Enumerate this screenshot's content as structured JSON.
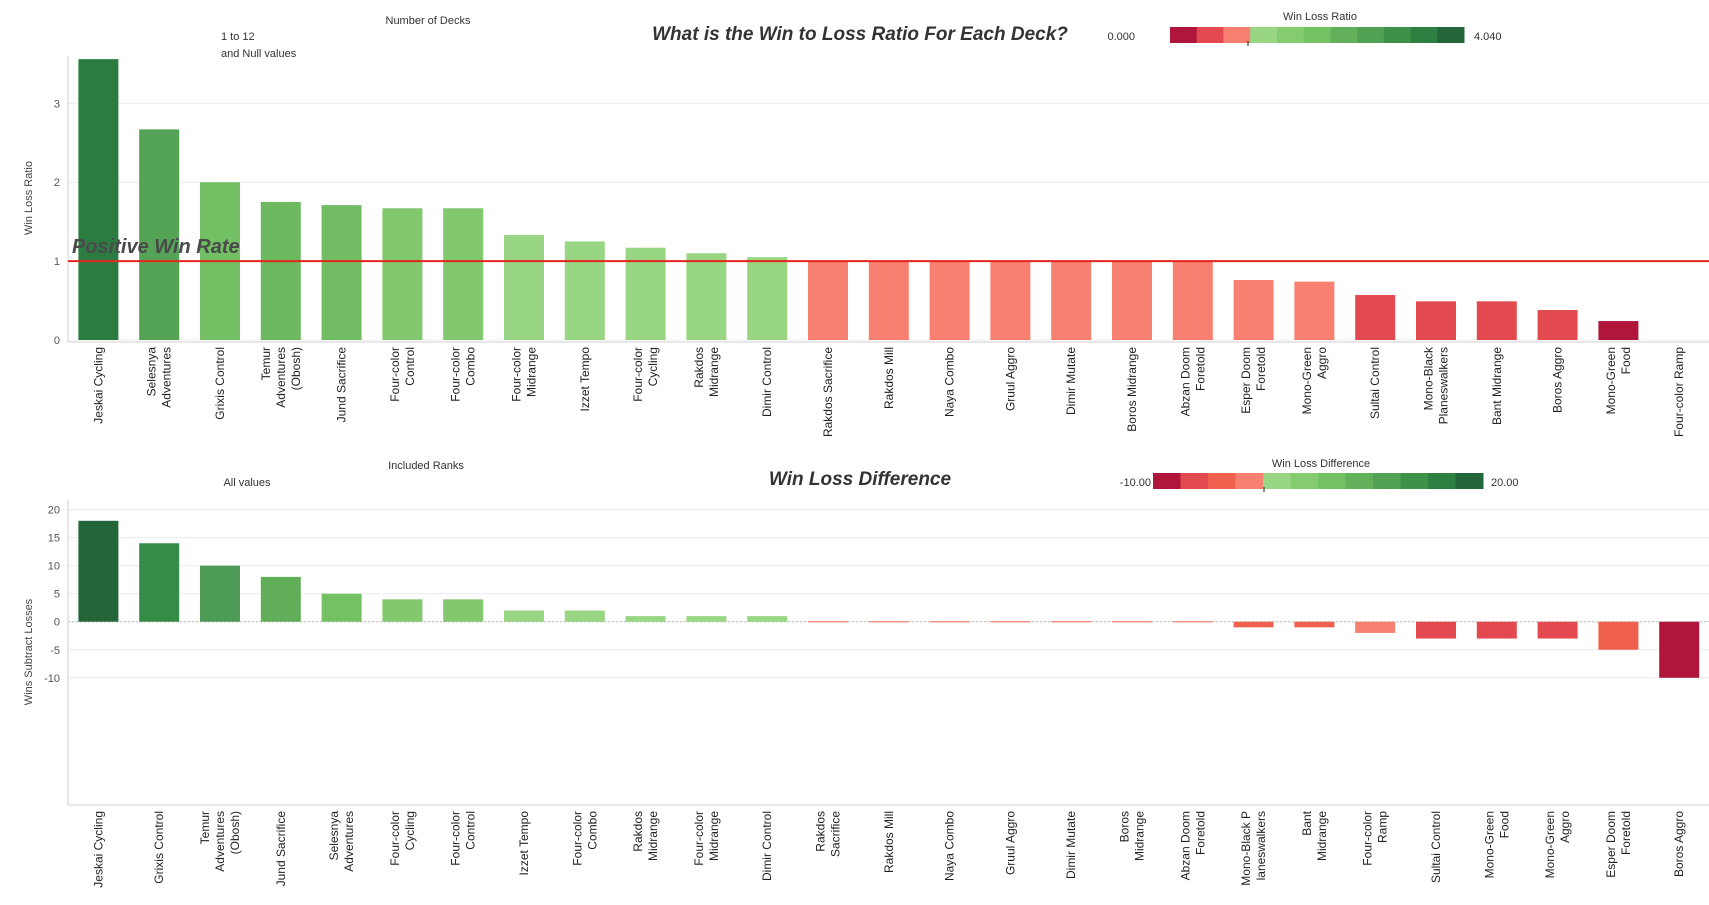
{
  "chart_data": [
    {
      "type": "bar",
      "title": "What is the Win to Loss Ratio For Each Deck?",
      "ylabel": "Win Loss Ratio",
      "ylim": [
        0,
        3.6
      ],
      "yticks": [
        "0",
        "1",
        "2",
        "3"
      ],
      "grid": true,
      "filters": [
        {
          "title": "Number of Decks",
          "value": "1 to 12\nand Null values",
          "lines": [
            "1 to 12",
            "and Null values"
          ]
        }
      ],
      "legend": {
        "title": "Win Loss Ratio",
        "min_label": "0.000",
        "max_label": "4.040",
        "placement": "top-right",
        "colors": [
          "#b0163c",
          "#e34a4f",
          "#f88070",
          "#98d683",
          "#84cc6f",
          "#74c164",
          "#62b05a",
          "#52a155",
          "#3d9148",
          "#2d8042",
          "#23663a"
        ]
      },
      "reference_line": {
        "value": 1,
        "label": "Positive Win Rate",
        "color": "#e3251c"
      },
      "categories": [
        "Jeskai Cycling",
        "Selesnya Adventures",
        "Grixis Control",
        "Temur Adventures (Obosh)",
        "Jund Sacrifice",
        "Four-color Control",
        "Four-color Combo",
        "Four-color Midrange",
        "Izzet Tempo",
        "Four-color Cycling",
        "Rakdos Midrange",
        "Dimir Control",
        "Rakdos Sacrifice",
        "Rakdos Mill",
        "Naya Combo",
        "Gruul Aggro",
        "Dimir Mutate",
        "Boros Midrange",
        "Abzan Doom Foretold",
        "Esper Doom Foretold",
        "Mono-Green Aggro",
        "Sultai Control",
        "Mono-Black Planeswalkers",
        "Bant Midrange",
        "Boros Aggro",
        "Mono-Green Food",
        "Four-color Ramp"
      ],
      "category_lines": [
        [
          "Jeskai Cycling"
        ],
        [
          "Selesnya",
          "Adventures"
        ],
        [
          "Grixis Control"
        ],
        [
          "Temur",
          "Adventures",
          "(Obosh)"
        ],
        [
          "Jund Sacrifice"
        ],
        [
          "Four-color",
          "Control"
        ],
        [
          "Four-color",
          "Combo"
        ],
        [
          "Four-color",
          "Midrange"
        ],
        [
          "Izzet Tempo"
        ],
        [
          "Four-color",
          "Cycling"
        ],
        [
          "Rakdos",
          "Midrange"
        ],
        [
          "Dimir Control"
        ],
        [
          "Rakdos Sacrifice"
        ],
        [
          "Rakdos Mill"
        ],
        [
          "Naya Combo"
        ],
        [
          "Gruul Aggro"
        ],
        [
          "Dimir Mutate"
        ],
        [
          "Boros Midrange"
        ],
        [
          "Abzan Doom",
          "Foretold"
        ],
        [
          "Esper Doom",
          "Foretold"
        ],
        [
          "Mono-Green",
          "Aggro"
        ],
        [
          "Sultai Control"
        ],
        [
          "Mono-Black",
          "Planeswalkers"
        ],
        [
          "Bant Midrange"
        ],
        [
          "Boros Aggro"
        ],
        [
          "Mono-Green",
          "Food"
        ],
        [
          "Four-color Ramp"
        ]
      ],
      "values": [
        3.56,
        2.67,
        2.0,
        1.75,
        1.71,
        1.67,
        1.67,
        1.33,
        1.25,
        1.17,
        1.1,
        1.05,
        1.0,
        1.0,
        1.0,
        1.0,
        1.0,
        1.0,
        1.0,
        0.76,
        0.74,
        0.57,
        0.49,
        0.49,
        0.38,
        0.24,
        0.0
      ],
      "colors": [
        "#2b7c41",
        "#55a356",
        "#73bf64",
        "#6cb960",
        "#72bd64",
        "#82c86f",
        "#82c86f",
        "#98d683",
        "#98d683",
        "#98d683",
        "#98d683",
        "#98d683",
        "#f88070",
        "#f88070",
        "#f88070",
        "#f88070",
        "#f88070",
        "#f88070",
        "#f88070",
        "#f88070",
        "#f88070",
        "#e34a4f",
        "#e34a4f",
        "#e34a4f",
        "#e34a4f",
        "#b0163c",
        "#f88070"
      ]
    },
    {
      "type": "bar",
      "title": "Win Loss Difference",
      "ylabel": "Wins Subtract Losses",
      "ylim": [
        -12,
        21
      ],
      "yticks": [
        "20",
        "15",
        "10",
        "5",
        "0",
        "-5",
        "-10"
      ],
      "grid": true,
      "filters": [
        {
          "title": "Included Ranks",
          "value": "All values",
          "lines": [
            "All values"
          ]
        }
      ],
      "legend": {
        "title": "Win Loss Difference",
        "min_label": "-10.00",
        "max_label": "20.00",
        "placement": "top-right",
        "colors": [
          "#b0163c",
          "#e34a4f",
          "#f0604f",
          "#f88070",
          "#98d683",
          "#84cc6f",
          "#74c164",
          "#62b05a",
          "#52a155",
          "#3d9148",
          "#2d8042",
          "#23663a"
        ]
      },
      "categories": [
        "Jeskai Cycling",
        "Grixis Control",
        "Temur Adventures (Obosh)",
        "Jund Sacrifice",
        "Selesnya Adventures",
        "Four-color Cycling",
        "Four-color Control",
        "Izzet Tempo",
        "Four-color Combo",
        "Rakdos Midrange",
        "Four-color Midrange",
        "Dimir Control",
        "Rakdos Sacrifice",
        "Rakdos Mill",
        "Naya Combo",
        "Gruul Aggro",
        "Dimir Mutate",
        "Boros Midrange",
        "Abzan Doom Foretold",
        "Mono-Black Planeswalkers",
        "Bant Midrange",
        "Four-color Ramp",
        "Sultai Control",
        "Mono-Green Food",
        "Mono-Green Aggro",
        "Esper Doom Foretold",
        "Boros Aggro"
      ],
      "category_lines": [
        [
          "Jeskai Cycling"
        ],
        [
          "Grixis Control"
        ],
        [
          "Temur",
          "Adventures",
          "(Obosh)"
        ],
        [
          "Jund Sacrifice"
        ],
        [
          "Selesnya",
          "Adventures"
        ],
        [
          "Four-color",
          "Cycling"
        ],
        [
          "Four-color",
          "Control"
        ],
        [
          "Izzet Tempo"
        ],
        [
          "Four-color",
          "Combo"
        ],
        [
          "Rakdos",
          "Midrange"
        ],
        [
          "Four-color",
          "Midrange"
        ],
        [
          "Dimir Control"
        ],
        [
          "Rakdos",
          "Sacrifice"
        ],
        [
          "Rakdos Mill"
        ],
        [
          "Naya Combo"
        ],
        [
          "Gruul Aggro"
        ],
        [
          "Dimir Mutate"
        ],
        [
          "Boros",
          "Midrange"
        ],
        [
          "Abzan Doom",
          "Foretold"
        ],
        [
          "Mono-Black P",
          "laneswalkers"
        ],
        [
          "Bant",
          "Midrange"
        ],
        [
          "Four-color",
          "Ramp"
        ],
        [
          "Sultai Control"
        ],
        [
          "Mono-Green",
          "Food"
        ],
        [
          "Mono-Green",
          "Aggro"
        ],
        [
          "Esper Doom",
          "Foretold"
        ],
        [
          "Boros Aggro"
        ]
      ],
      "values": [
        18,
        14,
        10,
        8,
        5,
        4,
        4,
        2,
        2,
        1,
        1,
        1,
        0,
        0,
        0,
        0,
        0,
        0,
        0,
        -1,
        -1,
        -2,
        -3,
        -3,
        -3,
        -5,
        -10
      ],
      "colors": [
        "#23663a",
        "#358c47",
        "#4d9a55",
        "#61ae59",
        "#74c164",
        "#82c86f",
        "#82c86f",
        "#98d683",
        "#98d683",
        "#98d683",
        "#98d683",
        "#98d683",
        "#f88070",
        "#f88070",
        "#f88070",
        "#f88070",
        "#f88070",
        "#f88070",
        "#f88070",
        "#f0604f",
        "#f0604f",
        "#f88070",
        "#e34a4f",
        "#e34a4f",
        "#e34a4f",
        "#f0604f",
        "#b0163c"
      ]
    }
  ]
}
